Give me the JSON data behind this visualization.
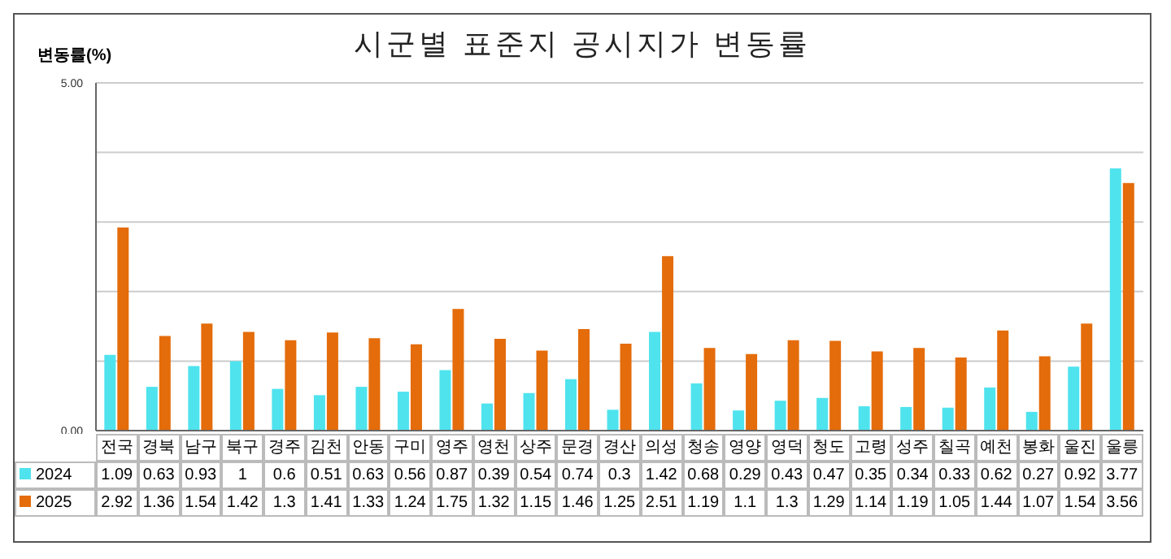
{
  "chart_data": {
    "type": "bar",
    "title": "시군별 표준지 공시지가 변동률",
    "ylabel": "변동률(%)",
    "categories": [
      "전국",
      "경북",
      "남구",
      "북구",
      "경주",
      "김천",
      "안동",
      "구미",
      "영주",
      "영천",
      "상주",
      "문경",
      "경산",
      "의성",
      "청송",
      "영양",
      "영덕",
      "청도",
      "고령",
      "성주",
      "칠곡",
      "예천",
      "봉화",
      "울진",
      "울릉"
    ],
    "series": [
      {
        "name": "2024",
        "color": "#4fe3ee",
        "values": [
          1.09,
          0.63,
          0.93,
          1,
          0.6,
          0.51,
          0.63,
          0.56,
          0.87,
          0.39,
          0.54,
          0.74,
          0.3,
          1.42,
          0.68,
          0.29,
          0.43,
          0.47,
          0.35,
          0.34,
          0.33,
          0.62,
          0.27,
          0.92,
          3.77
        ]
      },
      {
        "name": "2025",
        "color": "#e46c0a",
        "values": [
          2.92,
          1.36,
          1.54,
          1.42,
          1.3,
          1.41,
          1.33,
          1.24,
          1.75,
          1.32,
          1.15,
          1.46,
          1.25,
          2.51,
          1.19,
          1.1,
          1.3,
          1.29,
          1.14,
          1.19,
          1.05,
          1.44,
          1.07,
          1.54,
          3.56
        ]
      }
    ],
    "ylim": [
      0,
      5
    ],
    "yticks": [
      {
        "value": 0,
        "label": "0.00"
      },
      {
        "value": 1,
        "label": null
      },
      {
        "value": 2,
        "label": null
      },
      {
        "value": 3,
        "label": null
      },
      {
        "value": 4,
        "label": null
      },
      {
        "value": 5,
        "label": "5.00"
      }
    ],
    "grid": "y",
    "legend": "bottom",
    "data_labels": true
  }
}
